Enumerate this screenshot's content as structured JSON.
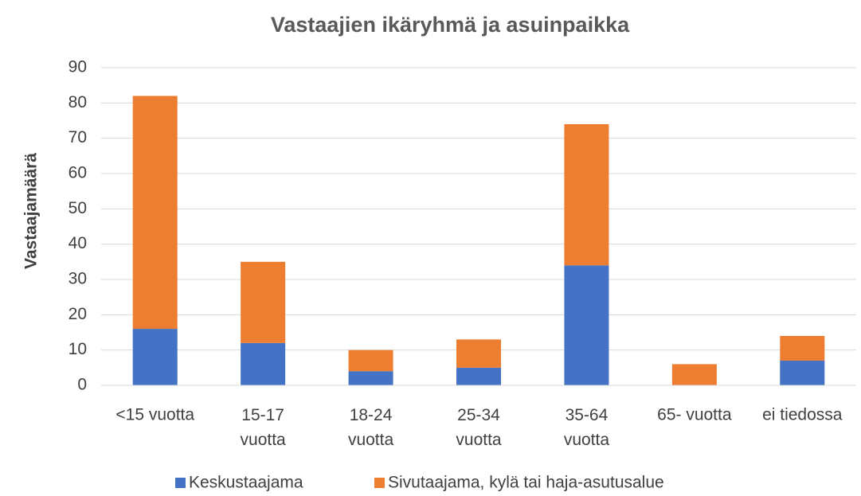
{
  "chart_data": {
    "type": "stacked_bar",
    "title": "Vastaajien ikäryhmä ja asuinpaikka",
    "y_label": "Vastaajamäärä",
    "categories": [
      "<15 vuotta",
      "15-17 vuotta",
      "18-24 vuotta",
      "25-34 vuotta",
      "35-64 vuotta",
      "65- vuotta",
      "ei tiedossa"
    ],
    "series": [
      {
        "name": "Keskustaajama",
        "color": "#4472c4",
        "values": [
          16,
          12,
          4,
          5,
          34,
          0,
          7
        ]
      },
      {
        "name": "Sivutaajama, kylä tai haja-asutusalue",
        "color": "#ed7d31",
        "values": [
          66,
          23,
          6,
          8,
          40,
          6,
          7
        ]
      }
    ],
    "ylim": [
      0,
      90
    ],
    "yticks": [
      0,
      10,
      20,
      30,
      40,
      50,
      60,
      70,
      80,
      90
    ],
    "grid": true,
    "legend": "bottom"
  }
}
